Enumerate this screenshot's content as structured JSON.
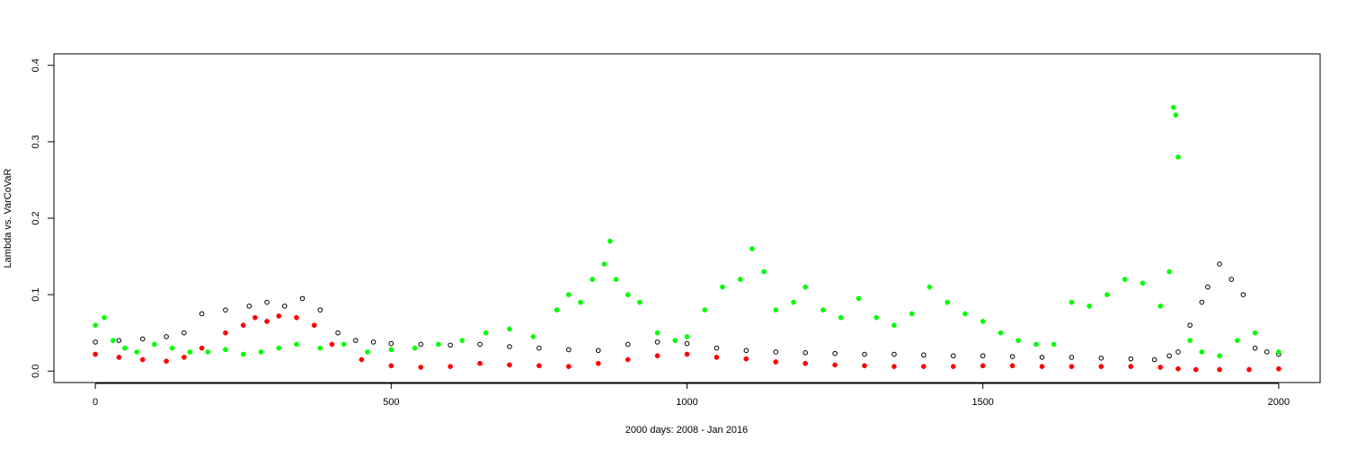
{
  "chart_data": {
    "type": "scatter",
    "xlabel": "2000 days: 2008 - Jan 2016",
    "ylabel": "Lambda vs. VarCoVaR",
    "xlim": [
      -70,
      2070
    ],
    "ylim": [
      -0.015,
      0.415
    ],
    "xticks": [
      0,
      500,
      1000,
      1500,
      2000
    ],
    "yticks": [
      0.0,
      0.1,
      0.2,
      0.3,
      0.4
    ],
    "xtick_labels": [
      "0",
      "500",
      "1000",
      "1500",
      "2000"
    ],
    "ytick_labels": [
      "0.0",
      "0.1",
      "0.2",
      "0.3",
      "0.4"
    ],
    "grid": false,
    "legend": "none",
    "series": [
      {
        "marker": "open-circle",
        "color": "#000000",
        "x": [
          0,
          40,
          80,
          120,
          150,
          180,
          220,
          260,
          290,
          320,
          350,
          380,
          410,
          440,
          470,
          500,
          550,
          600,
          650,
          700,
          750,
          800,
          850,
          900,
          950,
          1000,
          1050,
          1100,
          1150,
          1200,
          1250,
          1300,
          1350,
          1400,
          1450,
          1500,
          1550,
          1600,
          1650,
          1700,
          1750,
          1790,
          1815,
          1830,
          1850,
          1870,
          1880,
          1900,
          1920,
          1940,
          1960,
          1980,
          2000
        ],
        "y": [
          0.038,
          0.04,
          0.042,
          0.045,
          0.05,
          0.075,
          0.08,
          0.085,
          0.09,
          0.085,
          0.095,
          0.08,
          0.05,
          0.04,
          0.038,
          0.036,
          0.035,
          0.034,
          0.035,
          0.032,
          0.03,
          0.028,
          0.027,
          0.035,
          0.038,
          0.036,
          0.03,
          0.027,
          0.025,
          0.024,
          0.023,
          0.022,
          0.022,
          0.021,
          0.02,
          0.02,
          0.019,
          0.018,
          0.018,
          0.017,
          0.016,
          0.015,
          0.02,
          0.025,
          0.06,
          0.09,
          0.11,
          0.14,
          0.12,
          0.1,
          0.03,
          0.025,
          0.022
        ]
      },
      {
        "marker": "filled-circle",
        "color": "#ff0000",
        "x": [
          0,
          40,
          80,
          120,
          150,
          180,
          220,
          250,
          270,
          290,
          310,
          340,
          370,
          400,
          450,
          500,
          550,
          600,
          650,
          700,
          750,
          800,
          850,
          900,
          950,
          1000,
          1050,
          1100,
          1150,
          1200,
          1250,
          1300,
          1350,
          1400,
          1450,
          1500,
          1550,
          1600,
          1650,
          1700,
          1750,
          1800,
          1830,
          1860,
          1900,
          1950,
          2000
        ],
        "y": [
          0.022,
          0.018,
          0.015,
          0.013,
          0.018,
          0.03,
          0.05,
          0.06,
          0.07,
          0.065,
          0.072,
          0.07,
          0.06,
          0.035,
          0.015,
          0.007,
          0.005,
          0.006,
          0.01,
          0.008,
          0.007,
          0.006,
          0.01,
          0.015,
          0.02,
          0.022,
          0.018,
          0.016,
          0.012,
          0.01,
          0.008,
          0.007,
          0.006,
          0.006,
          0.006,
          0.007,
          0.007,
          0.006,
          0.006,
          0.006,
          0.006,
          0.005,
          0.003,
          0.002,
          0.002,
          0.002,
          0.003
        ]
      },
      {
        "marker": "filled-circle",
        "color": "#00ff00",
        "x": [
          0,
          15,
          30,
          50,
          70,
          100,
          130,
          160,
          190,
          220,
          250,
          280,
          310,
          340,
          380,
          420,
          460,
          500,
          540,
          580,
          620,
          660,
          700,
          740,
          780,
          800,
          820,
          840,
          860,
          870,
          880,
          900,
          920,
          950,
          980,
          1000,
          1030,
          1060,
          1090,
          1110,
          1130,
          1150,
          1180,
          1200,
          1230,
          1260,
          1290,
          1320,
          1350,
          1380,
          1410,
          1440,
          1470,
          1500,
          1530,
          1560,
          1590,
          1620,
          1650,
          1680,
          1710,
          1740,
          1770,
          1800,
          1815,
          1822,
          1826,
          1830,
          1850,
          1870,
          1900,
          1930,
          1960,
          2000
        ],
        "y": [
          0.06,
          0.07,
          0.04,
          0.03,
          0.025,
          0.035,
          0.03,
          0.025,
          0.025,
          0.028,
          0.022,
          0.025,
          0.03,
          0.035,
          0.03,
          0.035,
          0.025,
          0.028,
          0.03,
          0.035,
          0.04,
          0.05,
          0.055,
          0.045,
          0.08,
          0.1,
          0.09,
          0.12,
          0.14,
          0.17,
          0.12,
          0.1,
          0.09,
          0.05,
          0.04,
          0.045,
          0.08,
          0.11,
          0.12,
          0.16,
          0.13,
          0.08,
          0.09,
          0.11,
          0.08,
          0.07,
          0.095,
          0.07,
          0.06,
          0.075,
          0.11,
          0.09,
          0.075,
          0.065,
          0.05,
          0.04,
          0.035,
          0.035,
          0.09,
          0.085,
          0.1,
          0.12,
          0.115,
          0.085,
          0.13,
          0.345,
          0.335,
          0.28,
          0.04,
          0.025,
          0.02,
          0.04,
          0.05,
          0.025
        ]
      }
    ]
  }
}
